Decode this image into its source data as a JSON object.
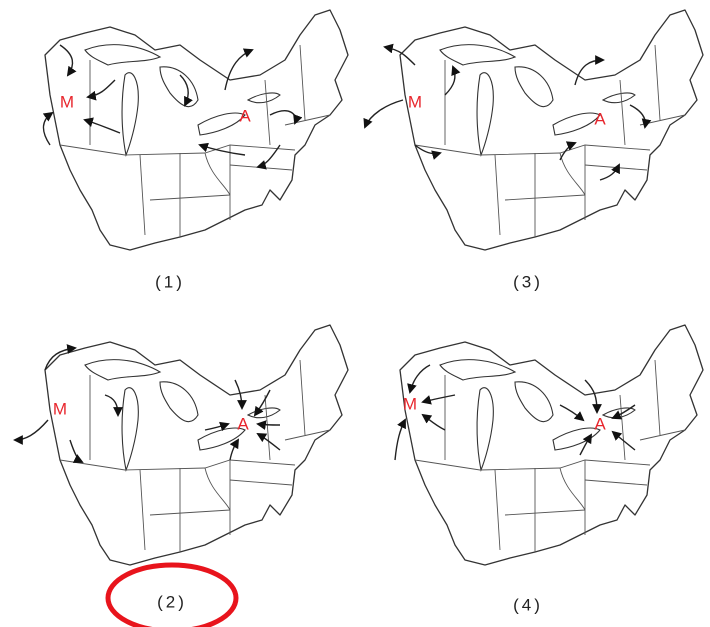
{
  "panels": [
    {
      "label": "(1)",
      "markers": [
        "M",
        "A"
      ]
    },
    {
      "label": "(3)",
      "markers": [
        "M",
        "A"
      ]
    },
    {
      "label": "(2)",
      "markers": [
        "M",
        "A"
      ]
    },
    {
      "label": "(4)",
      "markers": [
        "M",
        "A"
      ]
    }
  ]
}
